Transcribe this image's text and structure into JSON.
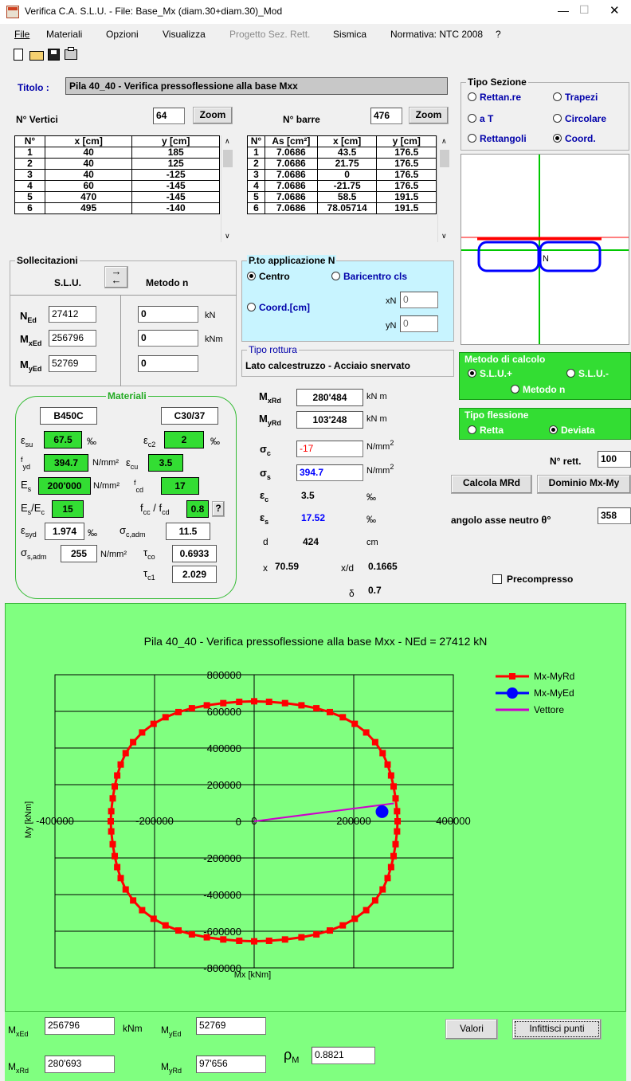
{
  "window": {
    "title": "Verifica C.A. S.L.U. - File: Base_Mx (diam.30+diam.30)_Mod",
    "minimize": "—",
    "maximize": "☐",
    "close": "✕"
  },
  "menu": [
    "File",
    "Materiali",
    "Opzioni",
    "Visualizza",
    "Progetto Sez. Rett.",
    "Sismica",
    "Normativa: NTC 2008",
    "?"
  ],
  "titolo": {
    "label": "Titolo :",
    "value": "Pila 40_40 - Verifica pressoflessione alla base Mxx"
  },
  "vertici": {
    "label": "N° Vertici",
    "count": "64",
    "zoom": "Zoom",
    "headers": [
      "N°",
      "x [cm]",
      "y [cm]"
    ],
    "rows": [
      [
        "1",
        "40",
        "185"
      ],
      [
        "2",
        "40",
        "125"
      ],
      [
        "3",
        "40",
        "-125"
      ],
      [
        "4",
        "60",
        "-145"
      ],
      [
        "5",
        "470",
        "-145"
      ],
      [
        "6",
        "495",
        "-140"
      ]
    ]
  },
  "barre": {
    "label": "N° barre",
    "count": "476",
    "zoom": "Zoom",
    "headers": [
      "N°",
      "As [cm²]",
      "x [cm]",
      "y [cm]"
    ],
    "rows": [
      [
        "1",
        "7.0686",
        "43.5",
        "176.5"
      ],
      [
        "2",
        "7.0686",
        "21.75",
        "176.5"
      ],
      [
        "3",
        "7.0686",
        "0",
        "176.5"
      ],
      [
        "4",
        "7.0686",
        "-21.75",
        "176.5"
      ],
      [
        "5",
        "7.0686",
        "58.5",
        "191.5"
      ],
      [
        "6",
        "7.0686",
        "78.05714",
        "191.5"
      ]
    ]
  },
  "tipo_sezione": {
    "title": "Tipo Sezione",
    "options": [
      "Rettan.re",
      "Trapezi",
      "a T",
      "Circolare",
      "Rettangoli",
      "Coord."
    ],
    "selected": "Coord."
  },
  "sollecitazioni": {
    "title": "Sollecitazioni",
    "slu": "S.L.U.",
    "metodo_n": "Metodo n",
    "NEd_label": "N",
    "NEd_sub": "Ed",
    "MxEd_label": "M",
    "MxEd_sub": "xEd",
    "MyEd_label": "M",
    "MyEd_sub": "yEd",
    "NEd": "27412",
    "MxEd": "256796",
    "MyEd": "52769",
    "n_N": "0",
    "n_Mx": "0",
    "n_My": "0",
    "unit_kN": "kN",
    "unit_kNm": "kNm"
  },
  "applicazione": {
    "title": "P.to applicazione N",
    "centro": "Centro",
    "baricentro": "Baricentro cls",
    "coord": "Coord.[cm]",
    "xN_label": "xN",
    "yN_label": "yN",
    "xN": "0",
    "yN": "0"
  },
  "tipo_rottura": {
    "title": "Tipo rottura",
    "value": "Lato calcestruzzo - Acciaio snervato"
  },
  "metodo_calcolo": {
    "title": "Metodo di calcolo",
    "options": [
      "S.L.U.+",
      "S.L.U.-",
      "Metodo n"
    ],
    "selected": "S.L.U.+"
  },
  "tipo_flessione": {
    "title": "Tipo flessione",
    "options": [
      "Retta",
      "Deviata"
    ],
    "selected": "Deviata"
  },
  "materiali": {
    "title": "Materiali",
    "steel": "B450C",
    "concrete": "C30/37",
    "esu": "67.5",
    "ec2": "2",
    "fyd": "394.7",
    "ecu": "3.5",
    "Es": "200'000",
    "fcd": "17",
    "EsEc": "15",
    "fccfcd": "0.8",
    "esyd": "1.974",
    "sc_adm": "11.5",
    "ss_adm": "255",
    "tco": "0.6933",
    "tc1": "2.029",
    "u_permille": "‰",
    "u_nmm2": "N/mm²",
    "help": "?"
  },
  "risultati": {
    "MxRd": "280'484",
    "MyRd": "103'248",
    "sigma_c": "-17",
    "sigma_s": "394.7",
    "eps_c": "3.5",
    "eps_s": "17.52",
    "d": "424",
    "d_unit": "cm",
    "x_label": "x",
    "x": "70.59",
    "xd_label": "x/d",
    "xd": "0.1665",
    "delta": "0.7",
    "unit_kNm": "kN m",
    "unit_nmm2": "N/mm",
    "unit_permille": "‰"
  },
  "right_controls": {
    "nrett_label": "N° rett.",
    "nrett": "100",
    "calcola": "Calcola MRd",
    "dominio": "Dominio Mx-My",
    "angolo_label": "angolo asse neutro",
    "theta": "θ°",
    "angolo": "358",
    "precompresso": "Precompresso"
  },
  "colors": {
    "green": "#33dd33",
    "panel_green": "#80ff80",
    "domain_red": "#ff0000",
    "ed_blue": "#0000ff",
    "vector": "#cc00cc"
  },
  "chart_data": {
    "type": "scatter",
    "title": "Pila 40_40 - Verifica pressoflessione alla base Mxx - NEd = 27412 kN",
    "xlabel": "Mx [kNm]",
    "ylabel": "My [kNm]",
    "xlim": [
      -400000,
      400000
    ],
    "ylim": [
      -800000,
      800000
    ],
    "x_ticks": [
      "-400000",
      "-200000",
      "0",
      "200000",
      "400000"
    ],
    "y_ticks": [
      "800000",
      "600000",
      "400000",
      "200000",
      "0",
      "-200000",
      "-400000",
      "-600000",
      "-800000"
    ],
    "grid": true,
    "legend_position": "right",
    "series": [
      {
        "name": "Mx-MyRd",
        "color": "#ff0000",
        "points": [
          [
            0,
            655000
          ],
          [
            30000,
            652000
          ],
          [
            62000,
            645000
          ],
          [
            95000,
            633000
          ],
          [
            125000,
            617000
          ],
          [
            152000,
            596000
          ],
          [
            178000,
            568000
          ],
          [
            202000,
            532000
          ],
          [
            225000,
            485000
          ],
          [
            243000,
            432000
          ],
          [
            258000,
            372000
          ],
          [
            268000,
            310000
          ],
          [
            275000,
            250000
          ],
          [
            280000,
            190000
          ],
          [
            284000,
            125000
          ],
          [
            287000,
            55000
          ],
          [
            288000,
            0
          ],
          [
            287000,
            -55000
          ],
          [
            284000,
            -125000
          ],
          [
            280000,
            -190000
          ],
          [
            275000,
            -250000
          ],
          [
            268000,
            -310000
          ],
          [
            258000,
            -372000
          ],
          [
            243000,
            -432000
          ],
          [
            225000,
            -485000
          ],
          [
            202000,
            -532000
          ],
          [
            178000,
            -568000
          ],
          [
            152000,
            -596000
          ],
          [
            125000,
            -617000
          ],
          [
            95000,
            -633000
          ],
          [
            62000,
            -645000
          ],
          [
            30000,
            -652000
          ],
          [
            0,
            -655000
          ],
          [
            -30000,
            -652000
          ],
          [
            -62000,
            -645000
          ],
          [
            -95000,
            -633000
          ],
          [
            -125000,
            -617000
          ],
          [
            -152000,
            -596000
          ],
          [
            -178000,
            -568000
          ],
          [
            -202000,
            -532000
          ],
          [
            -225000,
            -485000
          ],
          [
            -243000,
            -432000
          ],
          [
            -258000,
            -372000
          ],
          [
            -268000,
            -310000
          ],
          [
            -275000,
            -250000
          ],
          [
            -280000,
            -190000
          ],
          [
            -284000,
            -125000
          ],
          [
            -287000,
            -55000
          ],
          [
            -288000,
            0
          ],
          [
            -287000,
            55000
          ],
          [
            -284000,
            125000
          ],
          [
            -280000,
            190000
          ],
          [
            -275000,
            250000
          ],
          [
            -268000,
            310000
          ],
          [
            -258000,
            372000
          ],
          [
            -243000,
            432000
          ],
          [
            -225000,
            485000
          ],
          [
            -202000,
            532000
          ],
          [
            -178000,
            568000
          ],
          [
            -152000,
            596000
          ],
          [
            -125000,
            617000
          ],
          [
            -95000,
            633000
          ],
          [
            -62000,
            645000
          ],
          [
            -30000,
            652000
          ]
        ]
      },
      {
        "name": "Mx-MyEd",
        "color": "#0000ff",
        "points": [
          [
            256796,
            52769
          ]
        ]
      },
      {
        "name": "Vettore",
        "color": "#cc00cc",
        "points": [
          [
            0,
            0
          ],
          [
            280693,
            97656
          ]
        ]
      }
    ]
  },
  "bottom": {
    "MxEd": "256796",
    "MyEd": "52769",
    "MxRd": "280'693",
    "MyRd": "97'656",
    "rho": "0.8821",
    "kNm": "kNm",
    "valori": "Valori",
    "infittisci": "Infittisci punti",
    "M": "M",
    "xEd": "xEd",
    "yEd": "yEd",
    "xRd": "xRd",
    "yRd": "yRd",
    "rho_sym": "ρ",
    "rho_sub": "M"
  }
}
